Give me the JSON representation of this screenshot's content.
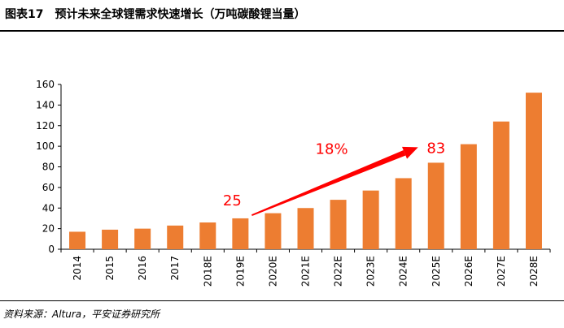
{
  "figure": {
    "number_label": "图表17",
    "title": "预计未来全球锂需求快速增长（万吨碳酸锂当量）",
    "source": "资料来源：Altura，平安证券研究所"
  },
  "colors": {
    "bar": "#ed7d31",
    "arrow": "#ff0000",
    "annotation": "#ff0000",
    "axis": "#000000"
  },
  "chart_data": {
    "type": "bar",
    "title": "预计未来全球锂需求快速增长（万吨碳酸锂当量）",
    "xlabel": "",
    "ylabel": "",
    "categories": [
      "2014",
      "2015",
      "2016",
      "2017",
      "2018E",
      "2019E",
      "2020E",
      "2021E",
      "2022E",
      "2023E",
      "2024E",
      "2025E",
      "2026E",
      "2027E",
      "2028E"
    ],
    "values": [
      17,
      19,
      20,
      23,
      26,
      30,
      35,
      40,
      48,
      57,
      69,
      84,
      102,
      124,
      152
    ],
    "ylim": [
      0,
      160
    ],
    "yticks": [
      0,
      20,
      40,
      60,
      80,
      100,
      120,
      140,
      160
    ],
    "grid": false,
    "legend": "none",
    "annotations": [
      {
        "text": "25",
        "x": "2019E",
        "y": 48
      },
      {
        "text": "18%",
        "x": "2022E",
        "y": 98
      },
      {
        "text": "83",
        "x": "2025E",
        "y": 99
      }
    ],
    "arrow": {
      "from": {
        "x": "2019E",
        "y": 33
      },
      "to": {
        "x": "2024E",
        "y": 99
      }
    }
  }
}
